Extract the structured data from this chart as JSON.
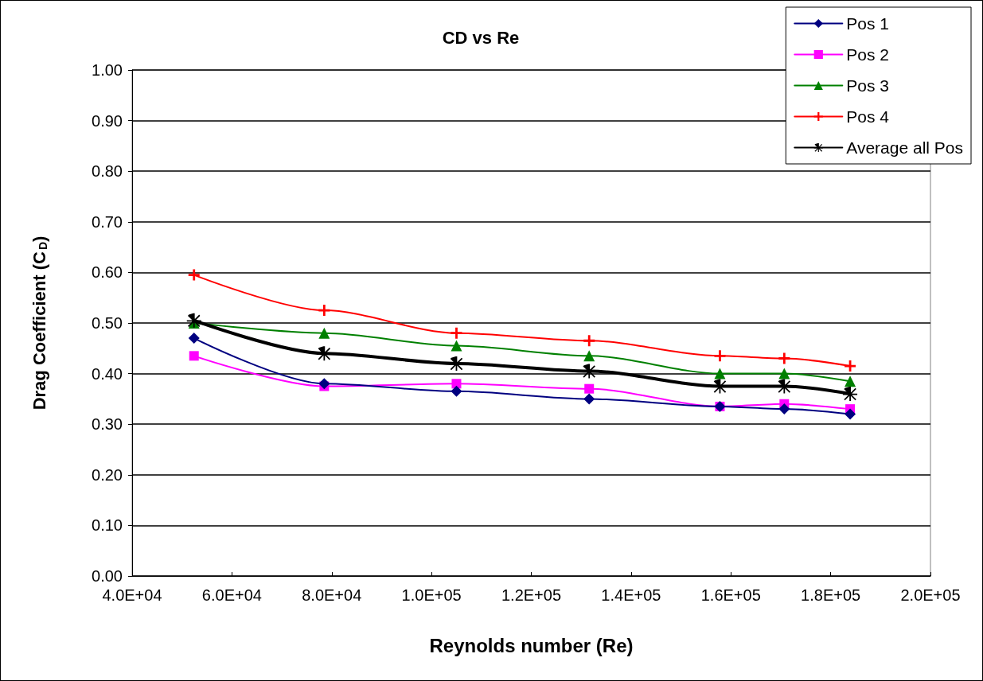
{
  "chart_data": {
    "type": "line",
    "title": "CD vs Re",
    "xlabel": "Reynolds number (Re)",
    "ylabel": "Drag Coefficient (C$_{D}$)",
    "x": [
      52400,
      78500,
      105000,
      131600,
      157800,
      170700,
      183900
    ],
    "series": [
      {
        "name": "Pos 1",
        "color": "#000080",
        "marker": "diamond",
        "values": [
          0.47,
          0.38,
          0.365,
          0.35,
          0.335,
          0.33,
          0.32
        ]
      },
      {
        "name": "Pos 2",
        "color": "#ff00ff",
        "marker": "square",
        "values": [
          0.435,
          0.375,
          0.38,
          0.37,
          0.335,
          0.34,
          0.33
        ]
      },
      {
        "name": "Pos 3",
        "color": "#008000",
        "marker": "triangle",
        "values": [
          0.5,
          0.48,
          0.455,
          0.435,
          0.4,
          0.4,
          0.385
        ]
      },
      {
        "name": "Pos 4",
        "color": "#ff0000",
        "marker": "cross",
        "values": [
          0.595,
          0.525,
          0.48,
          0.465,
          0.435,
          0.43,
          0.415
        ]
      },
      {
        "name": "Average all Pos",
        "color": "#000000",
        "marker": "star",
        "values": [
          0.505,
          0.44,
          0.42,
          0.405,
          0.375,
          0.375,
          0.36
        ]
      }
    ],
    "xlim": [
      40000,
      200000
    ],
    "xticks": [
      {
        "value": 40000,
        "label": "4.0E+04"
      },
      {
        "value": 60000,
        "label": "6.0E+04"
      },
      {
        "value": 80000,
        "label": "8.0E+04"
      },
      {
        "value": 100000,
        "label": "1.0E+05"
      },
      {
        "value": 120000,
        "label": "1.2E+05"
      },
      {
        "value": 140000,
        "label": "1.4E+05"
      },
      {
        "value": 160000,
        "label": "1.6E+05"
      },
      {
        "value": 180000,
        "label": "1.8E+05"
      },
      {
        "value": 200000,
        "label": "2.0E+05"
      }
    ],
    "ylim": [
      0,
      1
    ],
    "yticks": [
      {
        "value": 0,
        "label": "0.00"
      },
      {
        "value": 0.1,
        "label": "0.10"
      },
      {
        "value": 0.2,
        "label": "0.20"
      },
      {
        "value": 0.3,
        "label": "0.30"
      },
      {
        "value": 0.4,
        "label": "0.40"
      },
      {
        "value": 0.5,
        "label": "0.50"
      },
      {
        "value": 0.6,
        "label": "0.60"
      },
      {
        "value": 0.7,
        "label": "0.70"
      },
      {
        "value": 0.8,
        "label": "0.80"
      },
      {
        "value": 0.9,
        "label": "0.90"
      },
      {
        "value": 1,
        "label": "1.00"
      }
    ],
    "grid": "y",
    "legend": "top right",
    "line_style": "solid"
  }
}
